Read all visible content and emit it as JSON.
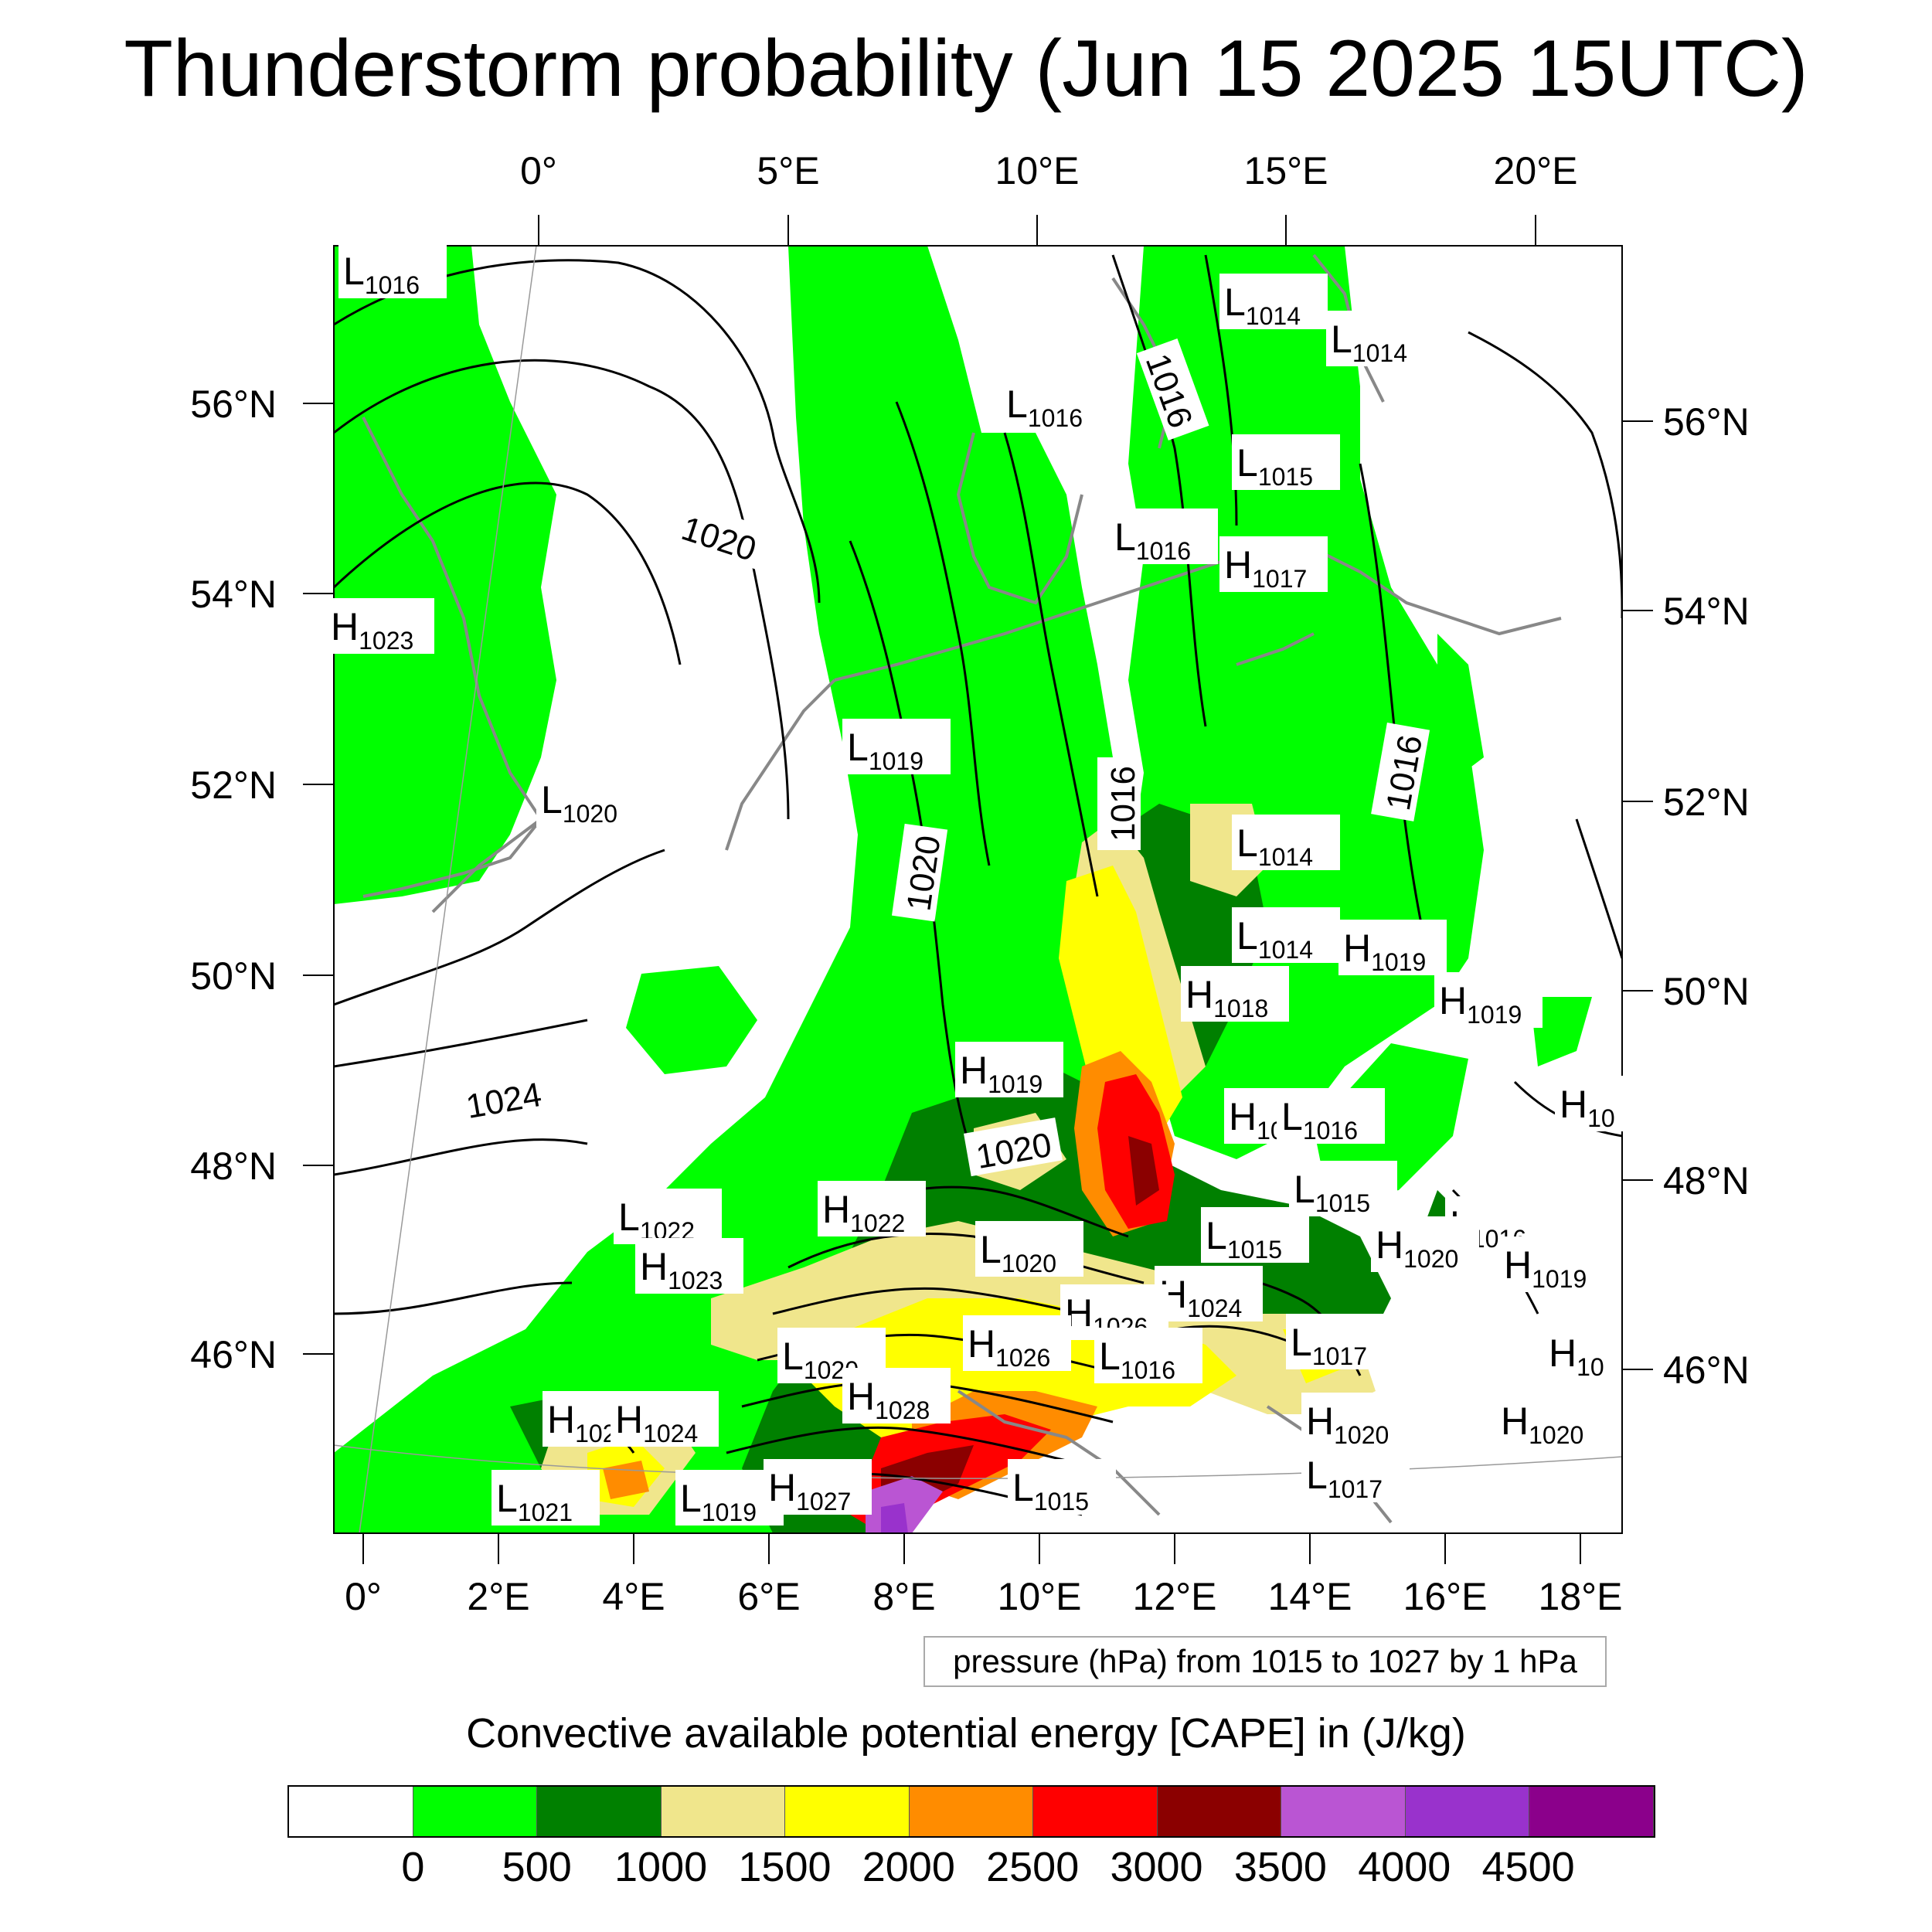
{
  "title": "Thunderstorm probability (Jun 15 2025 15UTC)",
  "top_lon_labels": [
    "0°",
    "5°E",
    "10°E",
    "15°E",
    "20°E"
  ],
  "left_lat_labels": [
    "56°N",
    "54°N",
    "52°N",
    "50°N",
    "48°N",
    "46°N"
  ],
  "right_lat_labels": [
    "56°N",
    "54°N",
    "52°N",
    "50°N",
    "48°N",
    "46°N"
  ],
  "bottom_lon_labels": [
    "0°",
    "2°E",
    "4°E",
    "6°E",
    "8°E",
    "10°E",
    "12°E",
    "14°E",
    "16°E",
    "18°E"
  ],
  "isobar_labels": [
    "1020",
    "1016",
    "1016",
    "1020",
    "1016",
    "1024",
    "1020"
  ],
  "pressure_systems": [
    {
      "kind": "L",
      "value": "1016"
    },
    {
      "kind": "L",
      "value": "1014"
    },
    {
      "kind": "L",
      "value": "1014"
    },
    {
      "kind": "L",
      "value": "1016"
    },
    {
      "kind": "L",
      "value": "1015"
    },
    {
      "kind": "L",
      "value": "1016"
    },
    {
      "kind": "H",
      "value": "1017"
    },
    {
      "kind": "H",
      "value": "1023"
    },
    {
      "kind": "L",
      "value": "1019"
    },
    {
      "kind": "L",
      "value": "1020"
    },
    {
      "kind": "L",
      "value": "1014"
    },
    {
      "kind": "L",
      "value": "1014"
    },
    {
      "kind": "H",
      "value": "1019"
    },
    {
      "kind": "H",
      "value": "1018"
    },
    {
      "kind": "H",
      "value": "1019"
    },
    {
      "kind": "H",
      "value": "1019"
    },
    {
      "kind": "H",
      "value": "10"
    },
    {
      "kind": "L",
      "value": "1016"
    },
    {
      "kind": "H",
      "value": "10"
    },
    {
      "kind": "L",
      "value": "1015"
    },
    {
      "kind": "L",
      "value": "1022"
    },
    {
      "kind": "H",
      "value": "1022"
    },
    {
      "kind": "L",
      "value": "1015"
    },
    {
      "kind": "L",
      "value": "1016"
    },
    {
      "kind": "H",
      "value": "1020"
    },
    {
      "kind": "H",
      "value": "1019"
    },
    {
      "kind": "H",
      "value": "1023"
    },
    {
      "kind": "L",
      "value": "1020"
    },
    {
      "kind": "H",
      "value": "1024"
    },
    {
      "kind": "H",
      "value": "1026"
    },
    {
      "kind": "H",
      "value": "1026"
    },
    {
      "kind": "L",
      "value": "1017"
    },
    {
      "kind": "L",
      "value": "1016"
    },
    {
      "kind": "L",
      "value": "1020"
    },
    {
      "kind": "H",
      "value": "1028"
    },
    {
      "kind": "H",
      "value": "102"
    },
    {
      "kind": "H",
      "value": "1024"
    },
    {
      "kind": "H",
      "value": "1020"
    },
    {
      "kind": "H",
      "value": "1020"
    },
    {
      "kind": "H",
      "value": "10"
    },
    {
      "kind": "L",
      "value": "1017"
    },
    {
      "kind": "L",
      "value": "1021"
    },
    {
      "kind": "L",
      "value": "1019"
    },
    {
      "kind": "H",
      "value": "1027"
    },
    {
      "kind": "L",
      "value": "1015"
    }
  ],
  "pressure_note": "pressure (hPa) from 1015 to 1027 by 1 hPa",
  "legend": {
    "title": "Convective available potential energy [CAPE] in (J/kg)",
    "colors": [
      "#ffffff",
      "#00ff00",
      "#008000",
      "#f0e68c",
      "#ffff00",
      "#ff8c00",
      "#ff0000",
      "#8b0000",
      "#ba55d3",
      "#9932cc",
      "#8b008b"
    ],
    "labels": [
      "0",
      "500",
      "1000",
      "1500",
      "2000",
      "2500",
      "3000",
      "3500",
      "4000",
      "4500"
    ]
  }
}
